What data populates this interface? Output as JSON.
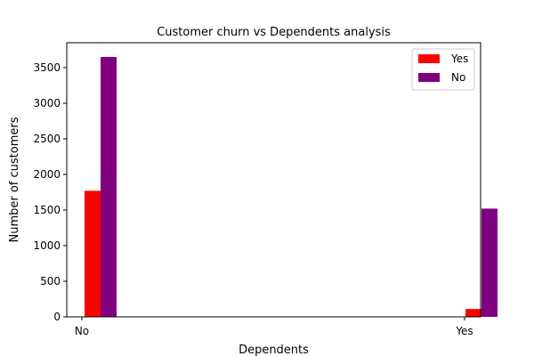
{
  "chart_data": {
    "type": "bar",
    "title": "Customer churn vs Dependents analysis",
    "xlabel": "Dependents",
    "ylabel": "Number of customers",
    "categories": [
      "No",
      "Yes"
    ],
    "ylim": [
      0,
      3850
    ],
    "yticks": [
      0,
      500,
      1000,
      1500,
      2000,
      2500,
      3000,
      3500
    ],
    "grid": false,
    "legend_position": "top-right",
    "series": [
      {
        "name": "Yes",
        "color": "#ff0000",
        "values": [
          1770,
          110
        ]
      },
      {
        "name": "No",
        "color": "#800080",
        "values": [
          3650,
          1520
        ]
      }
    ]
  }
}
